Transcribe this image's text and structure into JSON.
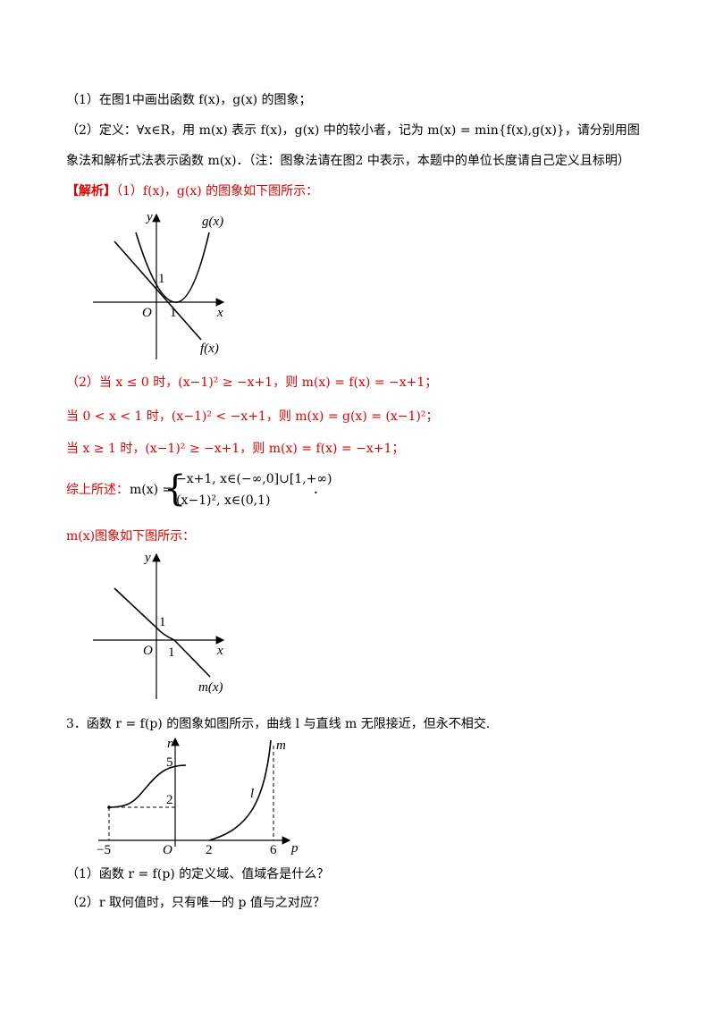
{
  "q1_line": "（1）在图1中画出函数 f(x)，g(x) 的图象；",
  "q2_line1": "（2）定义：∀x∈R，用 m(x) 表示 f(x)，g(x) 中的较小者，记为 m(x) = min{f(x),g(x)}，请分别用图",
  "q2_line2": "象法和解析式法表示函数 m(x)．（注：图象法请在图2 中表示，本题中的单位长度请自己定义且标明）",
  "sol_tag": "【解析】",
  "sol1_text": "（1）f(x)，g(x) 的图象如下图所示：",
  "graph1": {
    "y": "y",
    "x": "x",
    "o": "O",
    "one_y": "1",
    "one_x": "1",
    "g": "g(x)",
    "f": "f(x)"
  },
  "sol2_line1": "（2）当 x ≤ 0 时，(x−1)² ≥ −x+1，则 m(x) = f(x) = −x+1；",
  "sol2_line2": "当 0 < x < 1 时，(x−1)² < −x+1，则 m(x) = g(x) = (x−1)²；",
  "sol2_line3": "当 x ≥ 1 时，(x−1)² ≥ −x+1，则 m(x) = f(x) = −x+1；",
  "summary_label": "综上所述：",
  "summary_m": "m(x) =",
  "summary_case1": "−x+1, x∈(−∞,0]∪[1,+∞)",
  "summary_case2": "(x−1)², x∈(0,1)",
  "summary_end": "．",
  "m_graph_caption": "m(x)图象如下图所示：",
  "graph2": {
    "y": "y",
    "x": "x",
    "o": "O",
    "one_y": "1",
    "one_x": "1",
    "m": "m(x)"
  },
  "q3_line": "3．函数 r = f(p) 的图象如图所示，曲线 l 与直线 m 无限接近，但永不相交.",
  "graph3": {
    "r": "r",
    "m": "m",
    "five": "5",
    "two_y": "2",
    "neg5": "−5",
    "o": "O",
    "two_x": "2",
    "six": "6",
    "p": "p",
    "l": "l"
  },
  "q3_sub1": "（1）函数 r = f(p) 的定义域、值域各是什么？",
  "q3_sub2": "（2）r 取何值时，只有唯一的 p 值与之对应？"
}
